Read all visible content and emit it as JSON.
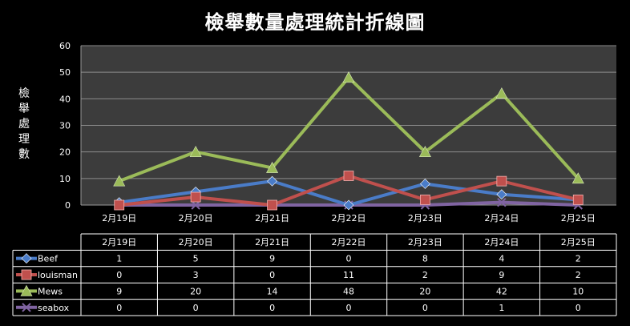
{
  "chart_data": {
    "type": "line",
    "title": "檢舉數量處理統計折線圖",
    "xlabel": "",
    "ylabel": "檢舉處理數",
    "categories": [
      "2月19日",
      "2月20日",
      "2月21日",
      "2月22日",
      "2月23日",
      "2月24日",
      "2月25日"
    ],
    "ylim": [
      0,
      60
    ],
    "yticks": [
      0,
      10,
      20,
      30,
      40,
      50,
      60
    ],
    "grid": true,
    "legend_placement": "data-table",
    "series": [
      {
        "name": "Beef",
        "color": "#4a7cc8",
        "marker": "diamond",
        "values": [
          1,
          5,
          9,
          0,
          8,
          4,
          2
        ]
      },
      {
        "name": "louisman",
        "color": "#c0504d",
        "marker": "square",
        "values": [
          0,
          3,
          0,
          11,
          2,
          9,
          2
        ]
      },
      {
        "name": "Mews",
        "color": "#9bbb59",
        "marker": "triangle",
        "values": [
          9,
          20,
          14,
          48,
          20,
          42,
          10
        ]
      },
      {
        "name": "seabox",
        "color": "#8064a2",
        "marker": "x",
        "values": [
          0,
          0,
          0,
          0,
          0,
          1,
          0
        ]
      }
    ]
  }
}
